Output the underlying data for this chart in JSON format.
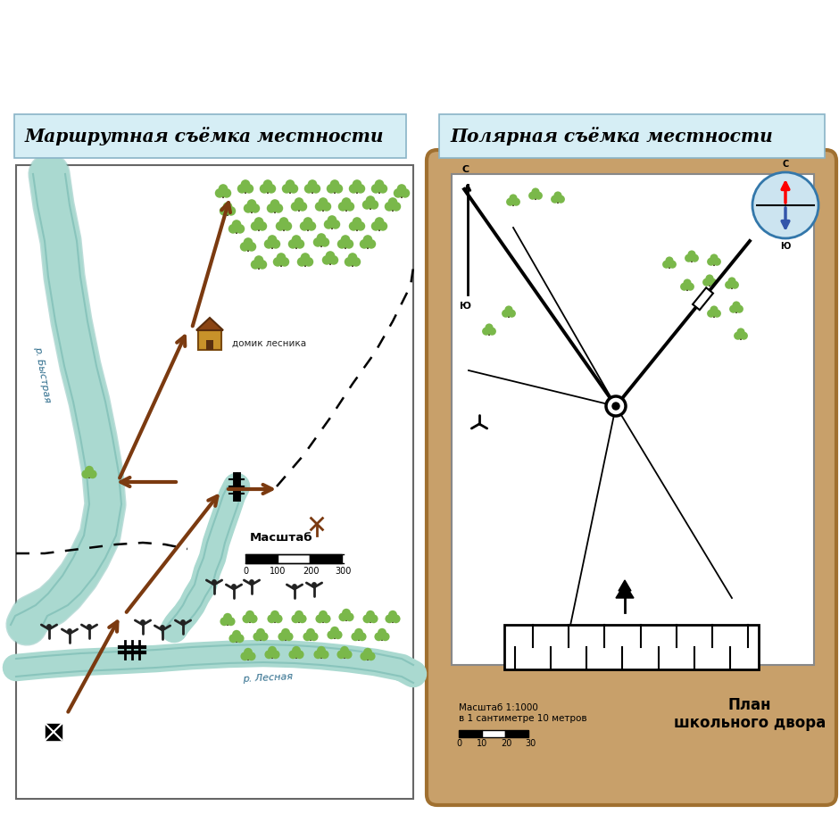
{
  "title_left": "Маршрутная съёмка местности",
  "title_right": "Полярная съёмка местности",
  "title_bg": "#d6eef5",
  "title_border": "#8ab4c7",
  "bg_color": "#ffffff",
  "water_color": "#aad9d0",
  "water_edge": "#7bbcb4",
  "tree_color": "#7ab84a",
  "tree_trunk": "#5a8a3c",
  "arrow_color": "#7b3a10",
  "shrub_color": "#222222",
  "right_panel_bg": "#c8a06a",
  "right_panel_edge": "#a07030",
  "right_inner_bg": "#ffffff",
  "compass_bg": "#cce4f0",
  "compass_edge": "#3377aa",
  "scale_left": "Масштаб",
  "scale_right_line1": "Масштаб 1:1000",
  "scale_right_line2": "в 1 сантиметре 10 метров",
  "plan_label": "План\nшкольного двора",
  "river_bystray": "р. Быстрая",
  "river_lesnaya": "р. Лесная",
  "house_label": "домик лесника"
}
